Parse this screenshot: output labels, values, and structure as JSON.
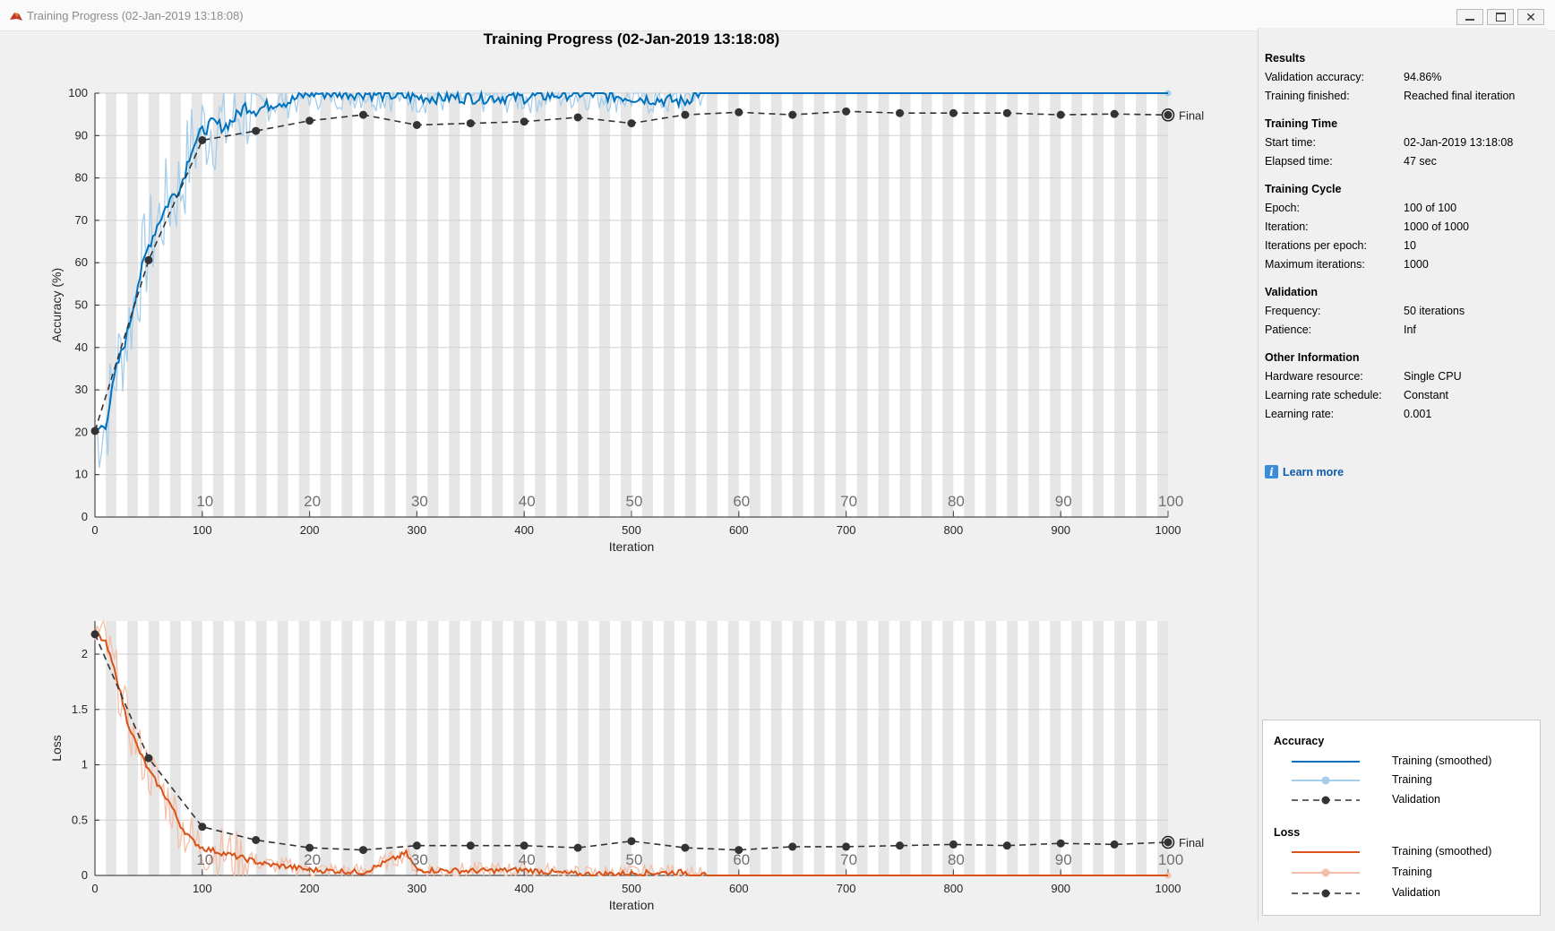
{
  "window": {
    "title": "Training Progress (02-Jan-2019 13:18:08)",
    "app_icon": "matlab-icon",
    "buttons": [
      "minimize-icon",
      "maximize-icon",
      "close-icon"
    ]
  },
  "plot_title": "Training Progress (02-Jan-2019 13:18:08)",
  "colors": {
    "accuracy_smoothed": "#0072bd",
    "accuracy_raw": "#a6cdea",
    "loss_smoothed": "#d95319",
    "loss_raw": "#f4bfa6",
    "validation": "#333333",
    "epoch_band": "#e6e6e6"
  },
  "chart_data": [
    {
      "type": "line",
      "ylabel": "Accuracy (%)",
      "xlabel": "Iteration",
      "xlim": [
        0,
        1000
      ],
      "ylim": [
        0,
        100
      ],
      "x_ticks": [
        0,
        100,
        200,
        300,
        400,
        500,
        600,
        700,
        800,
        900,
        1000
      ],
      "y_ticks": [
        0,
        10,
        20,
        30,
        40,
        50,
        60,
        70,
        80,
        90,
        100
      ],
      "epoch_labels": [
        "10",
        "20",
        "30",
        "40",
        "50",
        "60",
        "70",
        "80",
        "90",
        "100"
      ],
      "final_label": "Final",
      "series": [
        {
          "name": "Training (smoothed)",
          "x": [
            0,
            10,
            20,
            30,
            40,
            50,
            60,
            70,
            80,
            90,
            100,
            110,
            120,
            130,
            140,
            150,
            160,
            170,
            180,
            190,
            200,
            250,
            300,
            350,
            400,
            450,
            500,
            550,
            560,
            600,
            700,
            800,
            900,
            1000
          ],
          "y": [
            20,
            22,
            35,
            43,
            55,
            64,
            70,
            75,
            78,
            87,
            91,
            93,
            92,
            94,
            97,
            96,
            97,
            98,
            98,
            99,
            100,
            100,
            99,
            99,
            99,
            100,
            99,
            98,
            100,
            100,
            100,
            100,
            100,
            100
          ]
        },
        {
          "name": "Validation",
          "x": [
            0,
            50,
            100,
            150,
            200,
            250,
            300,
            350,
            400,
            450,
            500,
            550,
            600,
            650,
            700,
            750,
            800,
            850,
            900,
            950,
            1000
          ],
          "y": [
            20.3,
            60.6,
            88.9,
            91.1,
            93.5,
            94.9,
            92.5,
            92.9,
            93.3,
            94.3,
            92.9,
            94.9,
            95.5,
            94.9,
            95.7,
            95.3,
            95.3,
            95.3,
            94.9,
            95.1,
            94.86
          ]
        }
      ]
    },
    {
      "type": "line",
      "ylabel": "Loss",
      "xlabel": "Iteration",
      "xlim": [
        0,
        1000
      ],
      "ylim": [
        0,
        2.3
      ],
      "x_ticks": [
        0,
        100,
        200,
        300,
        400,
        500,
        600,
        700,
        800,
        900,
        1000
      ],
      "y_ticks": [
        0,
        0.5,
        1,
        1.5,
        2
      ],
      "y_tick_labels": [
        "0",
        "0.5",
        "1",
        "1.5",
        "2"
      ],
      "epoch_labels": [
        "10",
        "20",
        "30",
        "40",
        "50",
        "60",
        "70",
        "80",
        "90",
        "100"
      ],
      "final_label": "Final",
      "series": [
        {
          "name": "Training (smoothed)",
          "x": [
            0,
            10,
            20,
            30,
            40,
            50,
            60,
            70,
            80,
            90,
            100,
            120,
            140,
            160,
            180,
            200,
            250,
            290,
            300,
            350,
            400,
            450,
            500,
            550,
            560,
            600,
            700,
            800,
            900,
            1000
          ],
          "y": [
            2.2,
            2.1,
            1.8,
            1.4,
            1.15,
            0.95,
            0.8,
            0.65,
            0.45,
            0.32,
            0.25,
            0.2,
            0.15,
            0.1,
            0.08,
            0.05,
            0.03,
            0.2,
            0.05,
            0.04,
            0.05,
            0.01,
            0.02,
            0.03,
            0.0,
            0.0,
            0.0,
            0.0,
            0.0,
            0.0
          ]
        },
        {
          "name": "Validation",
          "x": [
            0,
            50,
            100,
            150,
            200,
            250,
            300,
            350,
            400,
            450,
            500,
            550,
            600,
            650,
            700,
            750,
            800,
            850,
            900,
            950,
            1000
          ],
          "y": [
            2.18,
            1.06,
            0.44,
            0.32,
            0.25,
            0.23,
            0.27,
            0.27,
            0.27,
            0.25,
            0.31,
            0.25,
            0.23,
            0.26,
            0.26,
            0.27,
            0.28,
            0.27,
            0.29,
            0.28,
            0.3
          ]
        }
      ]
    }
  ],
  "results": {
    "heading": "Results",
    "rows": [
      {
        "k": "Validation accuracy:",
        "v": "94.86%"
      },
      {
        "k": "Training finished:",
        "v": "Reached final iteration"
      }
    ]
  },
  "training_time": {
    "heading": "Training Time",
    "rows": [
      {
        "k": "Start time:",
        "v": "02-Jan-2019 13:18:08"
      },
      {
        "k": "Elapsed time:",
        "v": "47 sec"
      }
    ]
  },
  "training_cycle": {
    "heading": "Training Cycle",
    "rows": [
      {
        "k": "Epoch:",
        "v": "100 of 100"
      },
      {
        "k": "Iteration:",
        "v": "1000 of 1000"
      },
      {
        "k": "Iterations per epoch:",
        "v": "10"
      },
      {
        "k": "Maximum iterations:",
        "v": "1000"
      }
    ]
  },
  "validation": {
    "heading": "Validation",
    "rows": [
      {
        "k": "Frequency:",
        "v": "50 iterations"
      },
      {
        "k": "Patience:",
        "v": "Inf"
      }
    ]
  },
  "other": {
    "heading": "Other Information",
    "rows": [
      {
        "k": "Hardware resource:",
        "v": "Single CPU"
      },
      {
        "k": "Learning rate schedule:",
        "v": "Constant"
      },
      {
        "k": "Learning rate:",
        "v": "0.001"
      }
    ]
  },
  "learn_more": "Learn more",
  "legend": {
    "accuracy_heading": "Accuracy",
    "loss_heading": "Loss",
    "training_smoothed": "Training (smoothed)",
    "training": "Training",
    "validation": "Validation"
  }
}
